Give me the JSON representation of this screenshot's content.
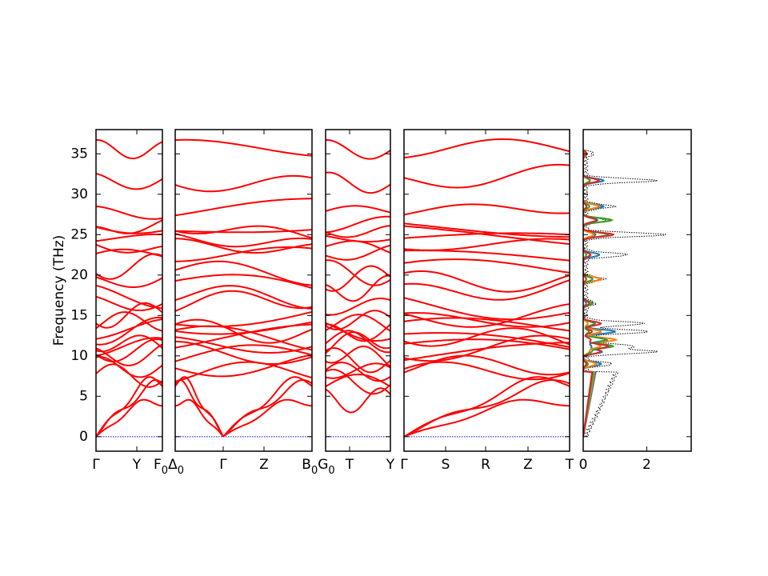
{
  "chart_data": {
    "type": "line",
    "description_role": "phonon band structure with projected density of states",
    "ylabel": "Frequency (THz)",
    "ylim": [
      -1.8,
      38
    ],
    "yticks": [
      0,
      5,
      10,
      15,
      20,
      25,
      30,
      35
    ],
    "line_color": "#ff0000",
    "zero_line_color": "#0000ff",
    "band_panels": [
      {
        "xticks": [
          "Γ",
          "Y",
          "F$_0$"
        ]
      },
      {
        "xticks": [
          "Δ$_0$",
          "Γ",
          "Z",
          "B$_0$"
        ]
      },
      {
        "xticks": [
          "G$_0$",
          "T",
          "Y"
        ]
      },
      {
        "xticks": [
          "Γ",
          "S",
          "R",
          "Z",
          "T"
        ]
      }
    ],
    "boundary_labels": [
      {
        "main": "F",
        "sub": "0",
        "main2": "Δ",
        "sub2": "0"
      },
      {
        "main": "B",
        "sub": "0",
        "main2": "G",
        "sub2": "0"
      }
    ],
    "dos_panel": {
      "xlim": [
        0,
        3.4
      ],
      "xticks": [
        0,
        2
      ],
      "series": [
        {
          "color": "#000000",
          "style": "dotted"
        },
        {
          "color": "#1f77b4"
        },
        {
          "color": "#ff7f0e"
        },
        {
          "color": "#2ca02c"
        },
        {
          "color": "#d62728"
        }
      ]
    },
    "bands_at_gamma": [
      0,
      0,
      0,
      7.8,
      8.6,
      9.8,
      10.5,
      11.2,
      11.9,
      12.6,
      13.3,
      14.0,
      14.6,
      16.4,
      17.6,
      19.2,
      20.6,
      22.4,
      23.8,
      24.6,
      25.4,
      26.0,
      27.8,
      31.6,
      35.6
    ]
  }
}
